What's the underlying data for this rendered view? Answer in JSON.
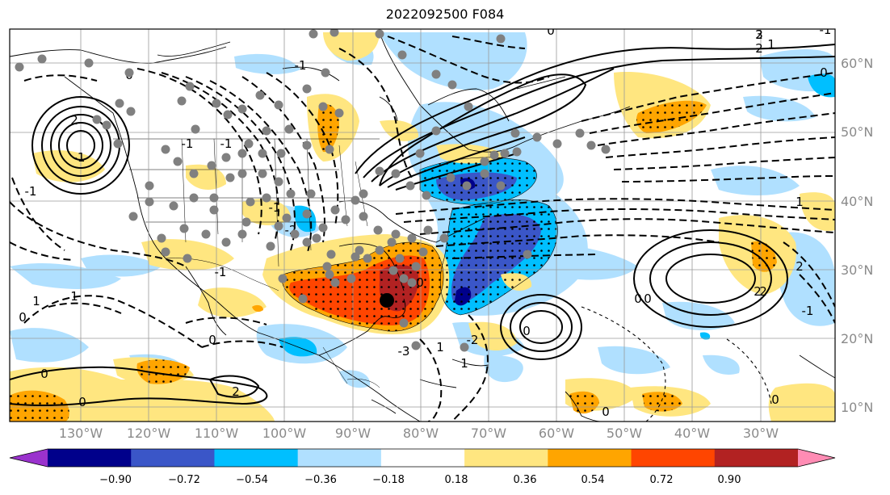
{
  "title": "2022092500 F084",
  "map": {
    "lat_labels": [
      "60°N",
      "50°N",
      "40°N",
      "30°N",
      "20°N",
      "10°N"
    ],
    "lon_labels": [
      "130°W",
      "120°W",
      "110°W",
      "100°W",
      "90°W",
      "80°W",
      "70°W",
      "60°W",
      "50°W",
      "40°W",
      "30°W"
    ],
    "contour_labels": [
      "-1",
      "0",
      "-1",
      "0",
      "1",
      "1",
      "0",
      "0",
      "2",
      "2",
      "-1",
      "-1",
      "-2",
      "-1",
      "0",
      "-2",
      "1",
      "0",
      "0",
      "2",
      "-1",
      "0",
      "3",
      "2",
      "2",
      "-1",
      "1",
      "0",
      "2",
      "1",
      "2",
      "0",
      "-1",
      "0",
      "-3",
      "-1",
      "1",
      "0",
      "0"
    ],
    "colors": {
      "purple": "#9a32cd",
      "navy": "#00008b",
      "royal_blue": "#3a56c8",
      "deep_sky": "#00bfff",
      "light_blue": "#b0e0ff",
      "white": "#ffffff",
      "khaki": "#ffe680",
      "orange": "#ffa500",
      "orange_red": "#ff4500",
      "firebrick": "#b22222",
      "pink": "#ff8cb4"
    }
  },
  "colorbar": {
    "ticks": [
      "−0.90",
      "−0.72",
      "−0.54",
      "−0.36",
      "−0.18",
      "0.18",
      "0.36",
      "0.54",
      "0.72",
      "0.90"
    ],
    "bins": [
      "#9a32cd",
      "#00008b",
      "#3a56c8",
      "#00bfff",
      "#b0e0ff",
      "#ffffff",
      "#ffe680",
      "#ffa500",
      "#ff4500",
      "#b22222",
      "#ff8cb4"
    ]
  },
  "markers": {
    "storm_center_label": "",
    "grey_dot_color": "#808080"
  }
}
